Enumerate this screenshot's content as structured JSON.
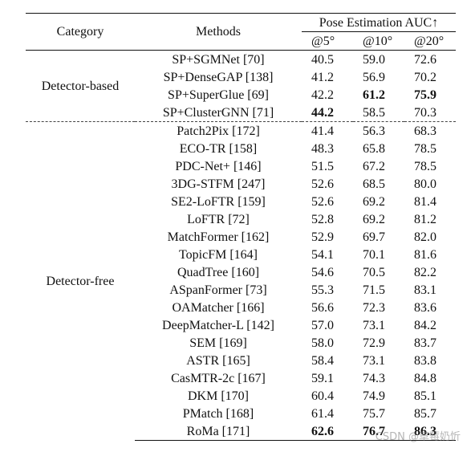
{
  "headers": {
    "category": "Category",
    "methods": "Methods",
    "metric_group": "Pose Estimation AUC↑",
    "at5": "@5°",
    "at10": "@10°",
    "at20": "@20°"
  },
  "groups": [
    {
      "category": "Detector-based",
      "rows": [
        {
          "method": "SP+SGMNet [70]",
          "v5": "40.5",
          "v10": "59.0",
          "v20": "72.6"
        },
        {
          "method": "SP+DenseGAP [138]",
          "v5": "41.2",
          "v10": "56.9",
          "v20": "70.2"
        },
        {
          "method": "SP+SuperGlue [69]",
          "v5": "42.2",
          "v10": "61.2",
          "v20": "75.9"
        },
        {
          "method": "SP+ClusterGNN [71]",
          "v5": "44.2",
          "v10": "58.5",
          "v20": "70.3"
        }
      ]
    },
    {
      "category": "Detector-free",
      "rows": [
        {
          "method": "Patch2Pix [172]",
          "v5": "41.4",
          "v10": "56.3",
          "v20": "68.3"
        },
        {
          "method": "ECO-TR [158]",
          "v5": "48.3",
          "v10": "65.8",
          "v20": "78.5"
        },
        {
          "method": "PDC-Net+ [146]",
          "v5": "51.5",
          "v10": "67.2",
          "v20": "78.5"
        },
        {
          "method": "3DG-STFM [247]",
          "v5": "52.6",
          "v10": "68.5",
          "v20": "80.0"
        },
        {
          "method": "SE2-LoFTR [159]",
          "v5": "52.6",
          "v10": "69.2",
          "v20": "81.4"
        },
        {
          "method": "LoFTR [72]",
          "v5": "52.8",
          "v10": "69.2",
          "v20": "81.2"
        },
        {
          "method": "MatchFormer [162]",
          "v5": "52.9",
          "v10": "69.7",
          "v20": "82.0"
        },
        {
          "method": "TopicFM [164]",
          "v5": "54.1",
          "v10": "70.1",
          "v20": "81.6"
        },
        {
          "method": "QuadTree [160]",
          "v5": "54.6",
          "v10": "70.5",
          "v20": "82.2"
        },
        {
          "method": "ASpanFormer [73]",
          "v5": "55.3",
          "v10": "71.5",
          "v20": "83.1"
        },
        {
          "method": "OAMatcher [166]",
          "v5": "56.6",
          "v10": "72.3",
          "v20": "83.6"
        },
        {
          "method": "DeepMatcher-L [142]",
          "v5": "57.0",
          "v10": "73.1",
          "v20": "84.2"
        },
        {
          "method": "SEM [169]",
          "v5": "58.0",
          "v10": "72.9",
          "v20": "83.7"
        },
        {
          "method": "ASTR [165]",
          "v5": "58.4",
          "v10": "73.1",
          "v20": "83.8"
        },
        {
          "method": "CasMTR-2c [167]",
          "v5": "59.1",
          "v10": "74.3",
          "v20": "84.8"
        },
        {
          "method": "DKM [170]",
          "v5": "60.4",
          "v10": "74.9",
          "v20": "85.1"
        },
        {
          "method": "PMatch [168]",
          "v5": "61.4",
          "v10": "75.7",
          "v20": "85.7"
        },
        {
          "method": "RoMa [171]",
          "v5": "62.6",
          "v10": "76.7",
          "v20": "86.3"
        }
      ]
    }
  ],
  "watermark": "CSDN @草莓奶忻"
}
